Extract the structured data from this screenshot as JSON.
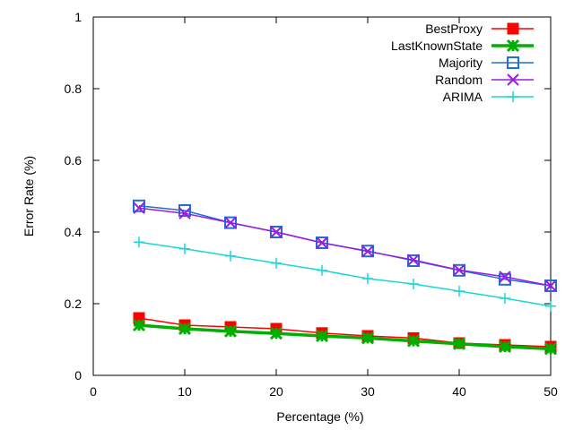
{
  "chart_data": {
    "type": "line",
    "title": "",
    "xlabel": "Percentage (%)",
    "ylabel": "Error Rate (%)",
    "xlim": [
      0,
      50
    ],
    "ylim": [
      0,
      1
    ],
    "grid": false,
    "legend_position": "top-right",
    "x_ticks": [
      "0",
      "10",
      "20",
      "30",
      "40",
      "50"
    ],
    "y_ticks": [
      "0",
      "0.2",
      "0.4",
      "0.6",
      "0.8",
      "1"
    ],
    "x": [
      5,
      10,
      15,
      20,
      25,
      30,
      35,
      40,
      45,
      50
    ],
    "series": [
      {
        "name": "BestProxy",
        "color": "#ff0000",
        "marker": "filled-square",
        "values": [
          0.16,
          0.14,
          0.135,
          0.13,
          0.118,
          0.11,
          0.104,
          0.09,
          0.085,
          0.08
        ]
      },
      {
        "name": "LastKnownState",
        "color": "#00b000",
        "marker": "star",
        "values": [
          0.14,
          0.13,
          0.123,
          0.117,
          0.11,
          0.104,
          0.096,
          0.088,
          0.08,
          0.074
        ]
      },
      {
        "name": "Majority",
        "color": "#1f6fd6",
        "marker": "open-square",
        "values": [
          0.473,
          0.46,
          0.426,
          0.4,
          0.37,
          0.347,
          0.32,
          0.293,
          0.268,
          0.25
        ]
      },
      {
        "name": "Random",
        "color": "#9a1ae6",
        "marker": "x",
        "values": [
          0.467,
          0.452,
          0.426,
          0.4,
          0.37,
          0.346,
          0.322,
          0.294,
          0.275,
          0.25
        ]
      },
      {
        "name": "ARIMA",
        "color": "#1ad6d6",
        "marker": "plus",
        "values": [
          0.372,
          0.353,
          0.333,
          0.313,
          0.293,
          0.27,
          0.255,
          0.235,
          0.215,
          0.193
        ]
      }
    ]
  }
}
